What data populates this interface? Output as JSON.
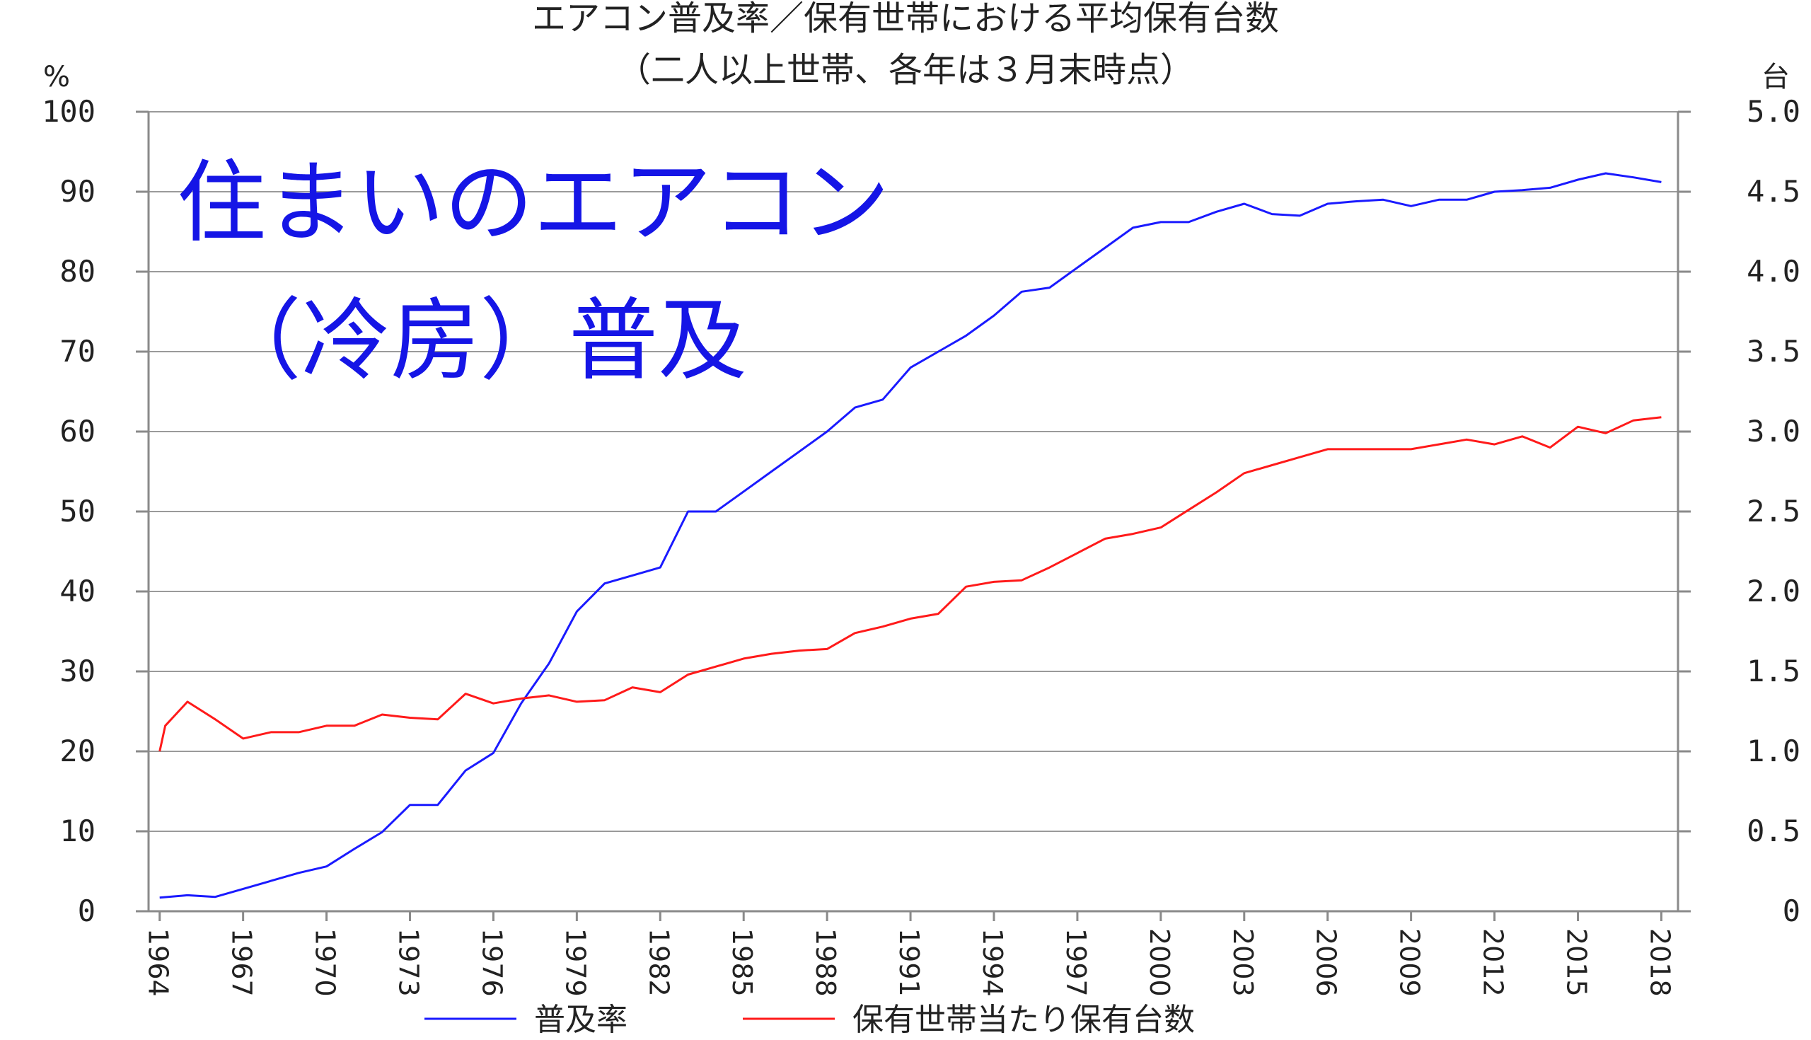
{
  "chart_data": {
    "type": "line",
    "title": "エアコン普及率／保有世帯における平均保有台数",
    "subtitle": "（二人以上世帯、各年は３月末時点）",
    "overlay_text": [
      "住まいのエアコン",
      "（冷房）普及"
    ],
    "left_unit": "%",
    "right_unit": "台",
    "ylim": [
      0,
      100
    ],
    "y2lim": [
      0,
      5.0
    ],
    "yticks": [
      "0",
      "10",
      "20",
      "30",
      "40",
      "50",
      "60",
      "70",
      "80",
      "90",
      "100"
    ],
    "y2ticks": [
      "0",
      "0.5",
      "1.0",
      "1.5",
      "2.0",
      "2.5",
      "3.0",
      "3.5",
      "4.0",
      "4.5",
      "5.0"
    ],
    "xticks": [
      "1964",
      "1967",
      "1970",
      "1973",
      "1976",
      "1979",
      "1982",
      "1985",
      "1988",
      "1991",
      "1994",
      "1997",
      "2000",
      "2003",
      "2006",
      "2009",
      "2012",
      "2015",
      "2018"
    ],
    "grid": true,
    "legend_position": "bottom",
    "colors": {
      "普及率": "#1a1aff",
      "保有世帯当たり保有台数": "#ff1a1a"
    },
    "series": [
      {
        "name": "普及率",
        "axis": "left",
        "x": [
          1964,
          1965,
          1966,
          1967,
          1968,
          1969,
          1970,
          1971,
          1972,
          1973,
          1974,
          1975,
          1976,
          1977,
          1978,
          1979,
          1980,
          1981,
          1982,
          1983,
          1984,
          1985,
          1986,
          1987,
          1988,
          1989,
          1990,
          1991,
          1992,
          1993,
          1994,
          1995,
          1996,
          1997,
          1998,
          1999,
          2000,
          2001,
          2002,
          2003,
          2004,
          2005,
          2006,
          2007,
          2008,
          2009,
          2010,
          2011,
          2012,
          2013,
          2014,
          2015,
          2016,
          2017,
          2018
        ],
        "values": [
          1.7,
          2.0,
          1.8,
          2.8,
          3.8,
          4.8,
          5.6,
          7.8,
          9.9,
          13.3,
          13.3,
          17.6,
          19.8,
          26.0,
          31.0,
          37.5,
          41.0,
          42.0,
          43.0,
          50.0,
          50.0,
          52.5,
          55.0,
          57.5,
          60.0,
          63.0,
          64.0,
          68.0,
          70.0,
          72.0,
          74.5,
          77.5,
          78.0,
          80.5,
          83.0,
          85.5,
          86.2,
          86.2,
          87.5,
          88.5,
          87.2,
          87.0,
          88.5,
          88.8,
          89.0,
          88.2,
          89.0,
          89.0,
          90.0,
          90.2,
          90.5,
          91.5,
          92.3,
          91.8,
          91.2
        ]
      },
      {
        "name": "保有世帯当たり保有台数",
        "axis": "right",
        "x": [
          1964,
          1964.2,
          1965,
          1966,
          1967,
          1968,
          1969,
          1970,
          1971,
          1972,
          1973,
          1974,
          1975,
          1976,
          1977,
          1978,
          1979,
          1980,
          1981,
          1982,
          1983,
          1984,
          1985,
          1986,
          1987,
          1988,
          1989,
          1990,
          1991,
          1992,
          1993,
          1994,
          1995,
          1996,
          1997,
          1998,
          1999,
          2000,
          2001,
          2002,
          2003,
          2004,
          2005,
          2006,
          2007,
          2008,
          2009,
          2010,
          2011,
          2012,
          2013,
          2014,
          2015,
          2016,
          2017,
          2018
        ],
        "values": [
          1.0,
          1.16,
          1.31,
          1.2,
          1.08,
          1.12,
          1.12,
          1.16,
          1.16,
          1.23,
          1.21,
          1.2,
          1.36,
          1.3,
          1.33,
          1.35,
          1.31,
          1.32,
          1.4,
          1.37,
          1.48,
          1.53,
          1.58,
          1.61,
          1.63,
          1.64,
          1.74,
          1.78,
          1.83,
          1.86,
          2.03,
          2.06,
          2.07,
          2.15,
          2.24,
          2.33,
          2.36,
          2.4,
          2.51,
          2.62,
          2.74,
          2.79,
          2.84,
          2.89,
          2.89,
          2.89,
          2.89,
          2.92,
          2.95,
          2.92,
          2.97,
          2.9,
          3.03,
          2.99,
          3.07,
          3.09
        ]
      }
    ]
  }
}
